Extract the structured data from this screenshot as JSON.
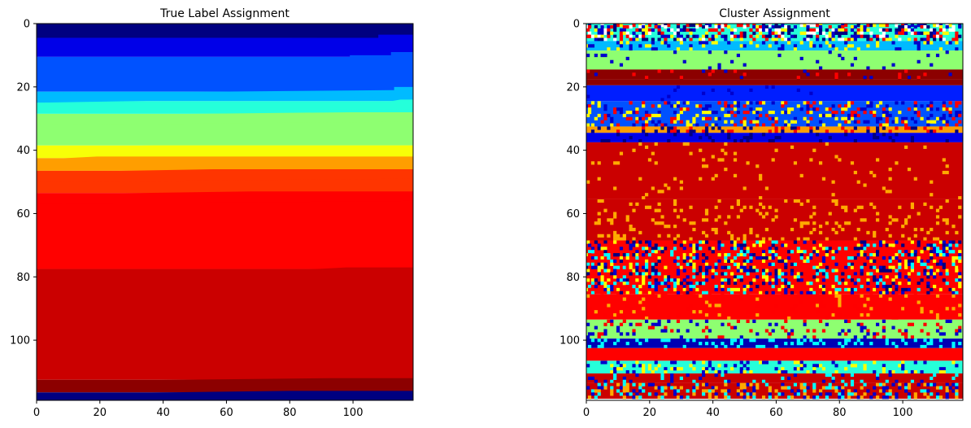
{
  "chart_data": [
    {
      "type": "heatmap",
      "title": "True Label Assignment",
      "colormap": "jet",
      "xlim": [
        0,
        119
      ],
      "ylim": [
        119,
        0
      ],
      "x_ticks": [
        0,
        20,
        40,
        60,
        80,
        100
      ],
      "y_ticks": [
        0,
        20,
        40,
        60,
        80,
        100
      ],
      "value_range": [
        0,
        9
      ],
      "bands": [
        {
          "y": [
            0,
            4
          ],
          "value": 0
        },
        {
          "y": [
            5,
            10
          ],
          "value": 1,
          "note": "steps right near x=108"
        },
        {
          "y": [
            11,
            21
          ],
          "value": 2
        },
        {
          "y": [
            22,
            24
          ],
          "value": 3
        },
        {
          "y": [
            25,
            28
          ],
          "value": 4
        },
        {
          "y": [
            29,
            38
          ],
          "value": 5
        },
        {
          "y": [
            39,
            42
          ],
          "value": 6
        },
        {
          "y": [
            43,
            46
          ],
          "value": 7
        },
        {
          "y": [
            47,
            53
          ],
          "value": 8
        },
        {
          "y": [
            54,
            77
          ],
          "value": 8.5
        },
        {
          "y": [
            78,
            112
          ],
          "value": 9
        },
        {
          "y": [
            113,
            116
          ],
          "value": 9.6
        },
        {
          "y": [
            117,
            118
          ],
          "value": 0
        }
      ],
      "boundaries": [
        {
          "between": [
            0,
            1
          ],
          "points": [
            [
              0,
              5
            ],
            [
              108,
              4.5
            ],
            [
              108,
              3.5
            ],
            [
              119,
              3.5
            ]
          ]
        },
        {
          "between": [
            1,
            2
          ],
          "points": [
            [
              0,
              11
            ],
            [
              99,
              11
            ],
            [
              99,
              10
            ],
            [
              112,
              10
            ],
            [
              112,
              9
            ],
            [
              119,
              9
            ]
          ]
        },
        {
          "between": [
            2,
            3
          ],
          "points": [
            [
              0,
              22
            ],
            [
              113,
              21
            ],
            [
              113,
              20
            ],
            [
              119,
              20
            ]
          ]
        },
        {
          "between": [
            3,
            4
          ],
          "points": [
            [
              0,
              25
            ],
            [
              112,
              24.5
            ],
            [
              115,
              24
            ],
            [
              119,
              24
            ]
          ]
        },
        {
          "between": [
            4,
            5
          ],
          "points": [
            [
              0,
              29
            ],
            [
              99,
              28
            ],
            [
              119,
              28
            ]
          ]
        },
        {
          "between": [
            5,
            6
          ],
          "points": [
            [
              0,
              39
            ],
            [
              37,
              38.5
            ],
            [
              119,
              38.5
            ]
          ]
        },
        {
          "between": [
            6,
            7
          ],
          "points": [
            [
              0,
              43
            ],
            [
              19,
              42
            ],
            [
              119,
              42
            ]
          ]
        },
        {
          "between": [
            7,
            8
          ],
          "points": [
            [
              0,
              47
            ],
            [
              56,
              46
            ],
            [
              119,
              46
            ]
          ]
        },
        {
          "between": [
            8,
            8.5
          ],
          "points": [
            [
              0,
              54
            ],
            [
              68,
              53
            ],
            [
              119,
              53
            ]
          ]
        },
        {
          "between": [
            8.5,
            9
          ],
          "points": [
            [
              0,
              78
            ],
            [
              79,
              78
            ],
            [
              98,
              77
            ],
            [
              119,
              77
            ]
          ]
        },
        {
          "between": [
            9,
            9.6
          ],
          "points": [
            [
              0,
              113
            ],
            [
              93,
              112
            ],
            [
              119,
              112
            ]
          ]
        },
        {
          "between": [
            9.6,
            0
          ],
          "points": [
            [
              0,
              117
            ],
            [
              80,
              116
            ],
            [
              119,
              116
            ]
          ]
        }
      ]
    },
    {
      "type": "heatmap",
      "title": "Cluster Assignment",
      "colormap": "jet",
      "xlim": [
        0,
        119
      ],
      "ylim": [
        119,
        0
      ],
      "x_ticks": [
        0,
        20,
        40,
        60,
        80,
        100
      ],
      "y_ticks": [
        0,
        20,
        40,
        60,
        80,
        100
      ],
      "value_range": [
        0,
        9
      ],
      "bands": [
        {
          "y": [
            0,
            5
          ],
          "value": 4,
          "noise": [
            "#0000cc",
            "#ffff00",
            "#ff0000",
            "#000080",
            "#ffffff"
          ],
          "noise_rate": 0.55
        },
        {
          "y": [
            6,
            8
          ],
          "value": 3,
          "noise": [
            "#0000cc",
            "#ffff00"
          ],
          "noise_rate": 0.2
        },
        {
          "y": [
            9,
            14
          ],
          "value": 5,
          "noise": [
            "#0000cc"
          ],
          "noise_rate": 0.04
        },
        {
          "y": [
            15,
            17
          ],
          "value": 9.6,
          "noise": [
            "#0000cc",
            "#ff0000"
          ],
          "noise_rate": 0.1
        },
        {
          "y": [
            18,
            19
          ],
          "value": 9.6
        },
        {
          "y": [
            20,
            24
          ],
          "value": 1.5,
          "noise": [
            "#0000cc"
          ],
          "noise_rate": 0.02
        },
        {
          "y": [
            25,
            32
          ],
          "value": 2,
          "noise": [
            "#ff0000",
            "#ffff00",
            "#0000cc"
          ],
          "noise_rate": 0.3
        },
        {
          "y": [
            33,
            34
          ],
          "value": 7,
          "noise": [
            "#ff0000",
            "#000080"
          ],
          "noise_rate": 0.25
        },
        {
          "y": [
            35,
            37
          ],
          "value": 1,
          "noise": [
            "#000080"
          ],
          "noise_rate": 0.1
        },
        {
          "y": [
            38,
            55
          ],
          "value": 9,
          "noise": [
            "#ffaa00"
          ],
          "noise_rate": 0.04
        },
        {
          "y": [
            56,
            68
          ],
          "value": 9,
          "noise": [
            "#ffaa00"
          ],
          "noise_rate": 0.12
        },
        {
          "y": [
            69,
            85
          ],
          "value": 8.5,
          "noise": [
            "#0000cc",
            "#ffff00",
            "#ff0000",
            "#00ffff",
            "#000080"
          ],
          "noise_rate": 0.45
        },
        {
          "y": [
            86,
            93
          ],
          "value": 8.5,
          "noise": [
            "#ffaa00",
            "#ff0000"
          ],
          "noise_rate": 0.1
        },
        {
          "y": [
            94,
            99
          ],
          "value": 5,
          "noise": [
            "#0000cc",
            "#ff0000"
          ],
          "noise_rate": 0.15
        },
        {
          "y": [
            100,
            102
          ],
          "value": 0.5,
          "noise": [
            "#00ffff"
          ],
          "noise_rate": 0.2
        },
        {
          "y": [
            103,
            106
          ],
          "value": 8.5
        },
        {
          "y": [
            107,
            110
          ],
          "value": 4,
          "noise": [
            "#0000cc",
            "#ffff00"
          ],
          "noise_rate": 0.25
        },
        {
          "y": [
            111,
            113
          ],
          "value": 9,
          "noise": [
            "#0000cc",
            "#00ffff"
          ],
          "noise_rate": 0.15
        },
        {
          "y": [
            114,
            118
          ],
          "value": 9,
          "noise": [
            "#0000cc",
            "#ffaa00",
            "#00ffff"
          ],
          "noise_rate": 0.35
        }
      ]
    }
  ]
}
